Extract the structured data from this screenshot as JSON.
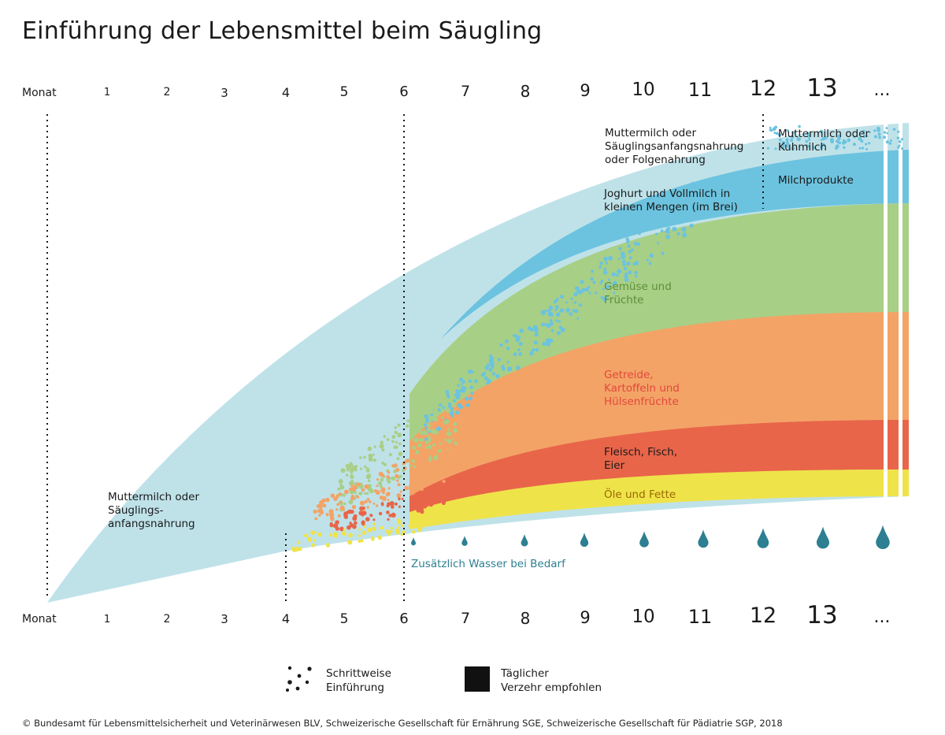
{
  "title": "Einführung der Lebensmittel beim Säugling",
  "axis": {
    "name": "Monat",
    "months": [
      "1",
      "2",
      "3",
      "4",
      "5",
      "6",
      "7",
      "8",
      "9",
      "10",
      "11",
      "12",
      "13",
      "..."
    ]
  },
  "bands": {
    "breastmilk_initial": "Muttermilch oder\nSäuglings-\nanfangsnahrung",
    "breastmilk_later": "Muttermilch oder\nSäuglingsanfangsnahrung\noder Folgenahrung",
    "breastmilk_13": "Muttermilch oder\nKuhmilch",
    "yoghurt": "Joghurt und Vollmilch in\nkleinen Mengen (im Brei)",
    "milkproducts": "Milchprodukte",
    "vegetables": "Gemüse und\nFrüchte",
    "cereals": "Getreide,\nKartoffeln und\nHülsenfrüchte",
    "meat": "Fleisch, Fisch,\nEier",
    "oils": "Öle und Fette"
  },
  "water_note": "Zusätzlich Wasser bei Bedarf",
  "legend": {
    "gradual": "Schrittweise\nEinführung",
    "daily": "Täglicher\nVerzehr empfohlen"
  },
  "footer": "© Bundesamt für Lebensmittelsicherheit und Veterinärwesen BLV, Schweizerische Gesellschaft für Ernährung SGE, Schweizerische Gesellschaft für Pädiatrie SGP, 2018",
  "colors": {
    "lightblue": "#bfe2e9",
    "blue": "#6cc3df",
    "green": "#a8cf86",
    "orange": "#f3a366",
    "red": "#e8654a",
    "yellow": "#efe34a",
    "water": "#2d7f91",
    "cereal_text": "#e2483d",
    "veg_text": "#5c8f3a",
    "oil_text": "#9a8a1a"
  }
}
